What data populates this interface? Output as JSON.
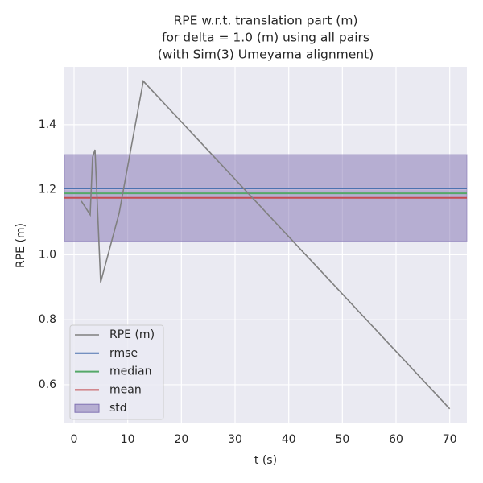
{
  "chart_data": {
    "type": "line",
    "title": [
      "RPE w.r.t. translation part (m)",
      "for delta = 1.0 (m) using all pairs",
      "(with Sim(3) Umeyama alignment)"
    ],
    "xlabel": "t (s)",
    "ylabel": "RPE (m)",
    "xlim": [
      -1.8,
      73.2
    ],
    "ylim": [
      0.481,
      1.578
    ],
    "xticks": [
      0,
      10,
      20,
      30,
      40,
      50,
      60,
      70
    ],
    "yticks": [
      0.6,
      0.8,
      {
        "value": 1.0,
        "label": "1.0"
      },
      1.2,
      1.4
    ],
    "grid": true,
    "legend": "lower left",
    "series": [
      {
        "name": "RPE (m)",
        "color": "#808080",
        "x": [
          1.35,
          3.0,
          3.45,
          3.9,
          4.95,
          8.4,
          12.9,
          70
        ],
        "values": [
          1.165,
          1.123,
          1.3,
          1.323,
          0.915,
          1.128,
          1.534,
          0.526
        ]
      },
      {
        "name": "rmse",
        "color": "#4c72b0",
        "value": 1.204
      },
      {
        "name": "median",
        "color": "#55a868",
        "value": 1.189
      },
      {
        "name": "mean",
        "color": "#c44e52",
        "value": 1.175
      },
      {
        "name": "std",
        "color": "#8172b2",
        "value": 0.133
      }
    ]
  }
}
